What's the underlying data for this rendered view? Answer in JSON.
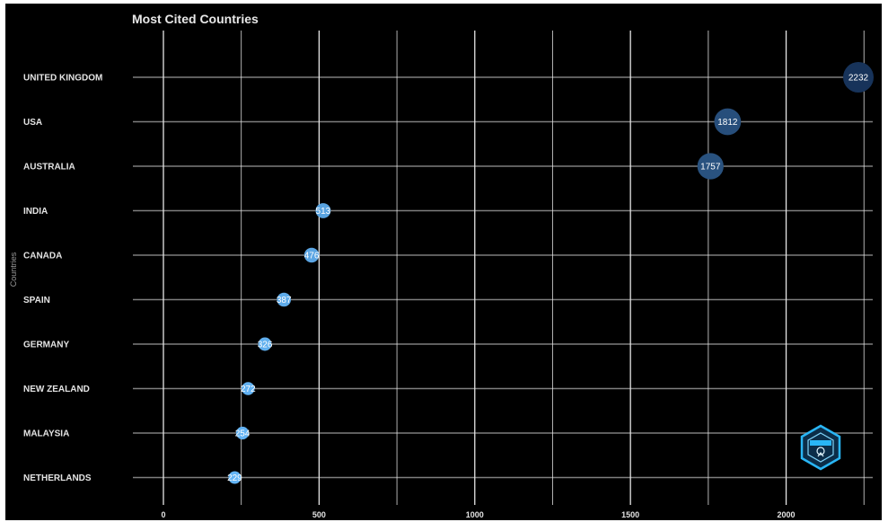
{
  "chart_data": {
    "type": "scatter",
    "title": "Most Cited Countries",
    "xlabel": "",
    "ylabel": "Countries",
    "xlim": [
      0,
      2232
    ],
    "x_ticks": [
      0,
      500,
      1000,
      1500,
      2000
    ],
    "grid": true,
    "legend": "none",
    "categories": [
      "UNITED KINGDOM",
      "USA",
      "AUSTRALIA",
      "INDIA",
      "CANADA",
      "SPAIN",
      "GERMANY",
      "NEW ZEALAND",
      "MALAYSIA",
      "NETHERLANDS"
    ],
    "values": [
      2232,
      1812,
      1757,
      513,
      476,
      387,
      326,
      272,
      254,
      229
    ],
    "value_labels": [
      "2232",
      "1812",
      "1757",
      "513",
      "476",
      "387",
      "326",
      "272",
      "254",
      "229"
    ],
    "colors": {
      "background": "#000000",
      "grid": "#e6e6e6",
      "low": "#64b5f6",
      "high": "#17335a",
      "text": "#e4e4e4"
    }
  }
}
